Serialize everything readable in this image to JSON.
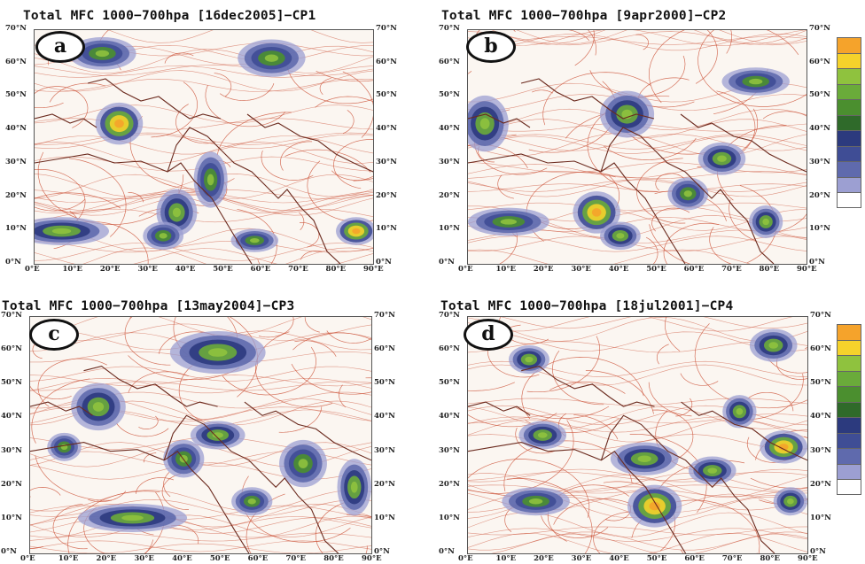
{
  "panels": [
    {
      "title": "Total MFC 1000−700hpa [16dec2005]−CP1",
      "letter": "a"
    },
    {
      "title": "Total MFC 1000−700hpa [9apr2000]−CP2",
      "letter": "b"
    },
    {
      "title": "Total MFC 1000−700hpa [13may2004]−CP3",
      "letter": "c"
    },
    {
      "title": "Total MFC 1000−700hpa [18jul2001]−CP4",
      "letter": "d"
    }
  ],
  "lat_labels": [
    "70°N",
    "60°N",
    "50°N",
    "40°N",
    "30°N",
    "20°N",
    "10°N",
    "0°N"
  ],
  "lon_labels": [
    "0°E",
    "10°E",
    "20°E",
    "30°E",
    "40°E",
    "50°E",
    "60°E",
    "70°E",
    "80°E",
    "90°E"
  ],
  "colorbar": [
    "#f5a32b",
    "#f5d22b",
    "#8fc23e",
    "#6aab3a",
    "#4b8f2f",
    "#2f6a2a",
    "#2c3a7e",
    "#3f4d95",
    "#5f6aad",
    "#9c9fd2",
    "#ffffff"
  ],
  "colors": {
    "streamline": "#c8452a",
    "coast": "#6b2a1e",
    "bg": "#fbf6f1"
  }
}
